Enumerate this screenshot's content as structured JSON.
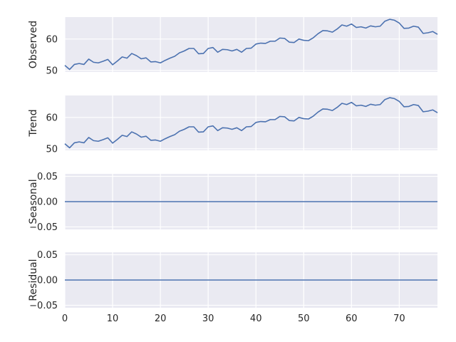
{
  "chart_data": [
    {
      "type": "line",
      "ylabel": "Observed",
      "xlim": [
        0,
        78
      ],
      "ylim": [
        49.5,
        67.0
      ],
      "yticks": [
        50,
        60
      ],
      "ytick_labels": [
        "50",
        "60"
      ],
      "values": [
        51.6,
        50.3,
        51.9,
        52.2,
        51.9,
        53.6,
        52.6,
        52.4,
        52.9,
        53.5,
        51.8,
        53.0,
        54.3,
        53.9,
        55.4,
        54.7,
        53.7,
        54.0,
        52.7,
        52.8,
        52.4,
        53.2,
        53.9,
        54.5,
        55.6,
        56.2,
        57.0,
        57.0,
        55.3,
        55.4,
        57.0,
        57.3,
        55.8,
        56.7,
        56.6,
        56.2,
        56.7,
        55.8,
        57.0,
        57.1,
        58.4,
        58.7,
        58.6,
        59.3,
        59.3,
        60.3,
        60.2,
        59.0,
        58.9,
        60.0,
        59.6,
        59.5,
        60.4,
        61.7,
        62.7,
        62.6,
        62.2,
        63.2,
        64.5,
        64.1,
        64.8,
        63.7,
        63.9,
        63.5,
        64.2,
        63.9,
        64.1,
        65.7,
        66.3,
        66.0,
        65.1,
        63.4,
        63.5,
        64.1,
        63.8,
        61.8,
        62.0,
        62.4,
        61.5
      ]
    },
    {
      "type": "line",
      "ylabel": "Trend",
      "xlim": [
        0,
        78
      ],
      "ylim": [
        49.5,
        67.0
      ],
      "yticks": [
        50,
        60
      ],
      "ytick_labels": [
        "50",
        "60"
      ],
      "values": [
        51.6,
        50.3,
        51.9,
        52.2,
        51.9,
        53.6,
        52.6,
        52.4,
        52.9,
        53.5,
        51.8,
        53.0,
        54.3,
        53.9,
        55.4,
        54.7,
        53.7,
        54.0,
        52.7,
        52.8,
        52.4,
        53.2,
        53.9,
        54.5,
        55.6,
        56.2,
        57.0,
        57.0,
        55.3,
        55.4,
        57.0,
        57.3,
        55.8,
        56.7,
        56.6,
        56.2,
        56.7,
        55.8,
        57.0,
        57.1,
        58.4,
        58.7,
        58.6,
        59.3,
        59.3,
        60.3,
        60.2,
        59.0,
        58.9,
        60.0,
        59.6,
        59.5,
        60.4,
        61.7,
        62.7,
        62.6,
        62.2,
        63.2,
        64.5,
        64.1,
        64.8,
        63.7,
        63.9,
        63.5,
        64.2,
        63.9,
        64.1,
        65.7,
        66.3,
        66.0,
        65.1,
        63.4,
        63.5,
        64.1,
        63.8,
        61.8,
        62.0,
        62.4,
        61.5
      ]
    },
    {
      "type": "line",
      "ylabel": "Seasonal",
      "xlim": [
        0,
        78
      ],
      "ylim": [
        -0.055,
        0.055
      ],
      "yticks": [
        0.05,
        0.0,
        -0.05
      ],
      "ytick_labels": [
        "0.05",
        "0.00",
        "−0.05"
      ],
      "values": [
        0,
        0,
        0,
        0,
        0,
        0,
        0,
        0,
        0,
        0,
        0,
        0,
        0,
        0,
        0,
        0,
        0,
        0,
        0,
        0,
        0,
        0,
        0,
        0,
        0,
        0,
        0,
        0,
        0,
        0,
        0,
        0,
        0,
        0,
        0,
        0,
        0,
        0,
        0,
        0,
        0,
        0,
        0,
        0,
        0,
        0,
        0,
        0,
        0,
        0,
        0,
        0,
        0,
        0,
        0,
        0,
        0,
        0,
        0,
        0,
        0,
        0,
        0,
        0,
        0,
        0,
        0,
        0,
        0,
        0,
        0,
        0,
        0,
        0,
        0,
        0,
        0,
        0,
        0
      ]
    },
    {
      "type": "line",
      "ylabel": "Residual",
      "xlim": [
        0,
        78
      ],
      "ylim": [
        -0.055,
        0.055
      ],
      "yticks": [
        0.05,
        0.0,
        -0.05
      ],
      "ytick_labels": [
        "0.05",
        "0.00",
        "−0.05"
      ],
      "xticks": [
        0,
        10,
        20,
        30,
        40,
        50,
        60,
        70
      ],
      "xtick_labels": [
        "0",
        "10",
        "20",
        "30",
        "40",
        "50",
        "60",
        "70"
      ],
      "values": [
        0,
        0,
        0,
        0,
        0,
        0,
        0,
        0,
        0,
        0,
        0,
        0,
        0,
        0,
        0,
        0,
        0,
        0,
        0,
        0,
        0,
        0,
        0,
        0,
        0,
        0,
        0,
        0,
        0,
        0,
        0,
        0,
        0,
        0,
        0,
        0,
        0,
        0,
        0,
        0,
        0,
        0,
        0,
        0,
        0,
        0,
        0,
        0,
        0,
        0,
        0,
        0,
        0,
        0,
        0,
        0,
        0,
        0,
        0,
        0,
        0,
        0,
        0,
        0,
        0,
        0,
        0,
        0,
        0,
        0,
        0,
        0,
        0,
        0,
        0,
        0,
        0,
        0,
        0
      ]
    }
  ],
  "colors": {
    "line": "#4c72b0",
    "panel": "#eaeaf2",
    "grid": "#ffffff",
    "text": "#262626"
  }
}
